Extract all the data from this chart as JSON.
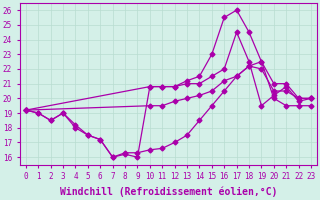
{
  "title": "",
  "xlabel": "Windchill (Refroidissement éolien,°C)",
  "ylabel": "",
  "bg_color": "#d4f0e8",
  "line_color": "#aa00aa",
  "xlim": [
    -0.5,
    23.5
  ],
  "ylim": [
    15.5,
    26.5
  ],
  "xticks": [
    0,
    1,
    2,
    3,
    4,
    5,
    6,
    7,
    8,
    9,
    10,
    11,
    12,
    13,
    14,
    15,
    16,
    17,
    18,
    19,
    20,
    21,
    22,
    23
  ],
  "yticks": [
    16,
    17,
    18,
    19,
    20,
    21,
    22,
    23,
    24,
    25,
    26
  ],
  "series": [
    {
      "x": [
        0,
        1,
        2,
        3,
        4,
        5,
        6,
        7,
        8,
        9,
        10,
        11,
        12,
        13,
        14,
        15,
        16,
        17,
        18,
        19,
        20,
        21,
        22,
        23
      ],
      "y": [
        19.2,
        19.0,
        18.5,
        19.0,
        18.2,
        17.5,
        17.2,
        16.0,
        16.3,
        16.3,
        16.5,
        16.6,
        17.0,
        17.5,
        18.5,
        19.5,
        20.5,
        21.5,
        22.2,
        22.0,
        20.5,
        20.5,
        20.0,
        20.0
      ]
    },
    {
      "x": [
        0,
        10,
        11,
        12,
        13,
        14,
        15,
        16,
        17,
        18,
        19,
        20,
        21,
        22,
        23
      ],
      "y": [
        19.2,
        20.8,
        20.8,
        20.8,
        21.0,
        21.0,
        21.5,
        22.0,
        24.5,
        22.5,
        19.5,
        20.2,
        20.8,
        19.8,
        20.0
      ]
    },
    {
      "x": [
        0,
        1,
        2,
        3,
        4,
        5,
        6,
        7,
        8,
        9,
        10,
        11,
        12,
        13,
        14,
        15,
        16,
        17,
        18,
        19,
        20,
        21,
        22,
        23
      ],
      "y": [
        19.2,
        19.0,
        18.5,
        19.0,
        18.0,
        17.5,
        17.2,
        16.0,
        16.2,
        16.0,
        20.8,
        20.8,
        20.8,
        21.2,
        21.5,
        23.0,
        25.5,
        26.0,
        24.5,
        22.5,
        21.0,
        21.0,
        20.0,
        20.0
      ]
    },
    {
      "x": [
        0,
        10,
        11,
        12,
        13,
        14,
        15,
        16,
        17,
        18,
        19,
        20,
        21,
        22,
        23
      ],
      "y": [
        19.2,
        19.5,
        19.5,
        19.8,
        20.0,
        20.2,
        20.5,
        21.2,
        21.5,
        22.2,
        22.5,
        20.0,
        19.5,
        19.5,
        19.5
      ]
    }
  ],
  "grid_color": "#b8ddd0",
  "marker": "D",
  "markersize": 2.5,
  "linewidth": 0.9,
  "xlabel_fontsize": 7,
  "tick_fontsize": 5.5,
  "xlabel_color": "#aa00aa",
  "tick_color": "#aa00aa",
  "spine_color": "#aa00aa"
}
